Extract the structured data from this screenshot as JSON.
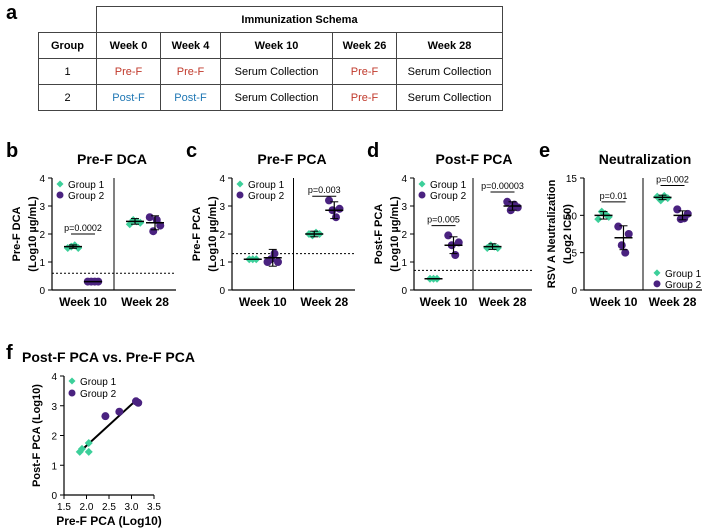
{
  "figure": {
    "panel_labels": {
      "a": "a",
      "b": "b",
      "c": "c",
      "d": "d",
      "e": "e",
      "f": "f"
    },
    "colors": {
      "pre_f": "#c0392b",
      "post_f": "#1f77b4",
      "group1": "#3ccf9a",
      "group2": "#4a2280"
    }
  },
  "schema": {
    "title": "Immunization Schema",
    "headers": [
      "Group",
      "Week 0",
      "Week 4",
      "Week 10",
      "Week 26",
      "Week 28"
    ],
    "rows": [
      [
        "1",
        "Pre-F",
        "Pre-F",
        "Serum Collection",
        "Pre-F",
        "Serum Collection"
      ],
      [
        "2",
        "Post-F",
        "Post-F",
        "Serum Collection",
        "Pre-F",
        "Serum Collection"
      ]
    ]
  },
  "chart_data": [
    {
      "id": "b",
      "type": "scatter",
      "title": "Pre-F DCA",
      "ylabel": [
        "Pre-F DCA",
        "(Log10 µg/mL)"
      ],
      "ylim": [
        0,
        4
      ],
      "yticks": [
        "0",
        "1",
        "2",
        "3",
        "4"
      ],
      "categories": [
        "Week 10",
        "Week 28"
      ],
      "dotted_line": 0.6,
      "legend": [
        "Group 1",
        "Group 2"
      ],
      "series": [
        {
          "name": "Group 1",
          "week": "Week 10",
          "points": [
            1.5,
            1.55,
            1.6,
            1.5
          ],
          "mean": 1.55,
          "sd": 0.06
        },
        {
          "name": "Group 2",
          "week": "Week 10",
          "points": [
            0.3,
            0.3,
            0.3,
            0.3
          ],
          "mean": 0.3,
          "sd": 0
        },
        {
          "name": "Group 1",
          "week": "Week 28",
          "points": [
            2.35,
            2.5,
            2.45,
            2.4
          ],
          "mean": 2.45,
          "sd": 0.1
        },
        {
          "name": "Group 2",
          "week": "Week 28",
          "points": [
            2.6,
            2.1,
            2.5,
            2.3
          ],
          "mean": 2.4,
          "sd": 0.25
        }
      ],
      "annotations": [
        {
          "text": "p=0.0002",
          "week": "Week 10",
          "y": 2.0
        }
      ]
    },
    {
      "id": "c",
      "type": "scatter",
      "title": "Pre-F PCA",
      "ylabel": [
        "Pre-F PCA",
        "(Log10 µg/mL)"
      ],
      "ylim": [
        0,
        4
      ],
      "yticks": [
        "0",
        "1",
        "2",
        "3",
        "4"
      ],
      "categories": [
        "Week 10",
        "Week 28"
      ],
      "dotted_line": 1.3,
      "legend": [
        "Group 1",
        "Group 2"
      ],
      "series": [
        {
          "name": "Group 1",
          "week": "Week 10",
          "points": [
            1.1,
            1.1,
            1.1
          ],
          "mean": 1.1,
          "sd": 0
        },
        {
          "name": "Group 2",
          "week": "Week 10",
          "points": [
            1.0,
            1.1,
            1.3,
            1.0
          ],
          "mean": 1.15,
          "sd": 0.3
        },
        {
          "name": "Group 1",
          "week": "Week 28",
          "points": [
            2.0,
            1.95,
            2.05,
            2.0
          ],
          "mean": 2.0,
          "sd": 0.1
        },
        {
          "name": "Group 2",
          "week": "Week 28",
          "points": [
            3.2,
            2.85,
            2.6,
            2.9
          ],
          "mean": 2.85,
          "sd": 0.3
        }
      ],
      "annotations": [
        {
          "text": "p=0.003",
          "week": "Week 28",
          "y": 3.35
        }
      ]
    },
    {
      "id": "d",
      "type": "scatter",
      "title": "Post-F PCA",
      "ylabel": [
        "Post-F PCA",
        "(Log10 µg/mL)"
      ],
      "ylim": [
        0,
        4
      ],
      "yticks": [
        "0",
        "1",
        "2",
        "3",
        "4"
      ],
      "categories": [
        "Week 10",
        "Week 28"
      ],
      "dotted_line": 0.7,
      "legend": [
        "Group 1",
        "Group 2"
      ],
      "series": [
        {
          "name": "Group 1",
          "week": "Week 10",
          "points": [
            0.4,
            0.4,
            0.4
          ],
          "mean": 0.4,
          "sd": 0
        },
        {
          "name": "Group 2",
          "week": "Week 10",
          "points": [
            1.95,
            1.6,
            1.25,
            1.7
          ],
          "mean": 1.6,
          "sd": 0.3
        },
        {
          "name": "Group 1",
          "week": "Week 28",
          "points": [
            1.5,
            1.6,
            1.55,
            1.5
          ],
          "mean": 1.55,
          "sd": 0.1
        },
        {
          "name": "Group 2",
          "week": "Week 28",
          "points": [
            3.15,
            2.85,
            3.05,
            2.95
          ],
          "mean": 3.0,
          "sd": 0.15
        }
      ],
      "annotations": [
        {
          "text": "p=0.005",
          "week": "Week 10",
          "y": 2.3
        },
        {
          "text": "p=0.00003",
          "week": "Week 28",
          "y": 3.5
        }
      ]
    },
    {
      "id": "e",
      "type": "scatter",
      "title": "Neutralization",
      "ylabel": [
        "RSV A Neutralization",
        "(Log2 IC50)"
      ],
      "ylim": [
        0,
        15
      ],
      "yticks": [
        "0",
        "5",
        "10",
        "15"
      ],
      "categories": [
        "Week 10",
        "Week 28"
      ],
      "dotted_line": null,
      "legend": [
        "Group 1",
        "Group 2"
      ],
      "legend_position": "bottom-right",
      "series": [
        {
          "name": "Group 1",
          "week": "Week 10",
          "points": [
            9.5,
            10.5,
            10.2,
            9.8
          ],
          "mean": 10.0,
          "sd": 0.5
        },
        {
          "name": "Group 2",
          "week": "Week 10",
          "points": [
            8.5,
            6.0,
            5.0,
            7.5
          ],
          "mean": 7.0,
          "sd": 1.6
        },
        {
          "name": "Group 1",
          "week": "Week 28",
          "points": [
            12.5,
            12.0,
            12.6,
            12.3
          ],
          "mean": 12.4,
          "sd": 0.3
        },
        {
          "name": "Group 2",
          "week": "Week 28",
          "points": [
            10.8,
            9.5,
            9.6,
            10.2
          ],
          "mean": 10.0,
          "sd": 0.6
        }
      ],
      "annotations": [
        {
          "text": "p=0.01",
          "week": "Week 10",
          "y": 11.8
        },
        {
          "text": "p=0.002",
          "week": "Week 28",
          "y": 14.0
        }
      ]
    },
    {
      "id": "f",
      "type": "scatter",
      "title": "Post-F PCA vs. Pre-F PCA",
      "xlabel": "Pre-F PCA (Log10)",
      "ylabel": [
        "Post-F PCA (Log10)"
      ],
      "xlim": [
        1.5,
        3.5
      ],
      "xticks": [
        "1.5",
        "2.0",
        "2.5",
        "3.0",
        "3.5"
      ],
      "ylim": [
        0,
        4
      ],
      "yticks": [
        "0",
        "1",
        "2",
        "3",
        "4"
      ],
      "legend": [
        "Group 1",
        "Group 2"
      ],
      "series": [
        {
          "name": "Group 1",
          "x": [
            1.85,
            1.9,
            2.05,
            2.05
          ],
          "y": [
            1.45,
            1.55,
            1.75,
            1.45
          ]
        },
        {
          "name": "Group 2",
          "x": [
            2.42,
            2.73,
            3.1,
            3.15
          ],
          "y": [
            2.65,
            2.8,
            3.15,
            3.1
          ]
        }
      ],
      "fit_line": {
        "x": [
          1.85,
          3.15
        ],
        "y": [
          1.45,
          3.25
        ]
      }
    }
  ]
}
